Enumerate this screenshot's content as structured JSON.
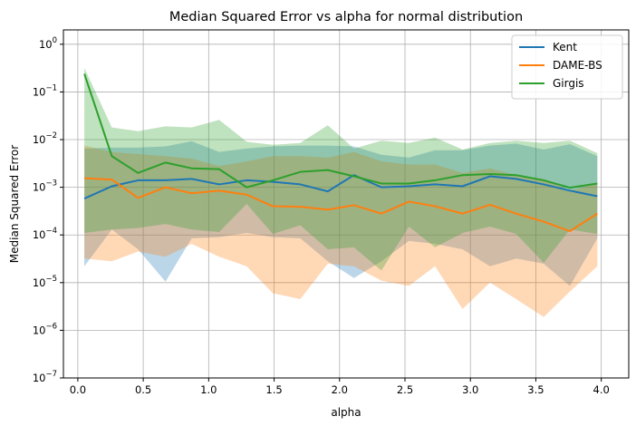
{
  "chart_data": {
    "type": "line",
    "title": "Median Squared Error vs alpha for normal distribution",
    "xlabel": "alpha",
    "ylabel": "Median Squared Error",
    "xscale": "linear",
    "yscale": "log",
    "xlim": [
      -0.11,
      4.21
    ],
    "ylim": [
      1e-07,
      2
    ],
    "xticks": [
      0.0,
      0.5,
      1.0,
      1.5,
      2.0,
      2.5,
      3.0,
      3.5,
      4.0
    ],
    "xtick_labels": [
      "0.0",
      "0.5",
      "1.0",
      "1.5",
      "2.0",
      "2.5",
      "3.0",
      "3.5",
      "4.0"
    ],
    "yticks": [
      1e-07,
      1e-06,
      1e-05,
      0.0001,
      0.001,
      0.01,
      0.1,
      1.0
    ],
    "ytick_exponents": [
      "−7",
      "−6",
      "−5",
      "−4",
      "−3",
      "−2",
      "−1",
      "0"
    ],
    "ytick_base": "10",
    "grid": true,
    "legend": "top-right",
    "x": [
      0.05,
      0.26,
      0.46,
      0.67,
      0.87,
      1.08,
      1.29,
      1.49,
      1.7,
      1.91,
      2.11,
      2.32,
      2.53,
      2.73,
      2.94,
      3.15,
      3.35,
      3.56,
      3.76,
      3.97
    ],
    "series": [
      {
        "name": "Kent",
        "color": "#1f77b4",
        "values": [
          0.00058,
          0.00105,
          0.0014,
          0.0014,
          0.0015,
          0.00115,
          0.0014,
          0.0013,
          0.00115,
          0.00082,
          0.0018,
          0.001,
          0.00105,
          0.00115,
          0.00105,
          0.0017,
          0.0015,
          0.00115,
          0.00085,
          0.00065
        ],
        "upper": [
          0.0065,
          0.0068,
          0.0068,
          0.0072,
          0.0092,
          0.0055,
          0.0065,
          0.0072,
          0.0075,
          0.0075,
          0.0072,
          0.0048,
          0.0042,
          0.006,
          0.006,
          0.0075,
          0.0082,
          0.0062,
          0.008,
          0.0045
        ],
        "lower": [
          2.2e-05,
          0.00013,
          5e-05,
          1.05e-05,
          8.5e-05,
          9e-05,
          0.00011,
          9e-05,
          8.5e-05,
          2.8e-05,
          1.25e-05,
          2.8e-05,
          7.5e-05,
          6.5e-05,
          5e-05,
          2.2e-05,
          3.2e-05,
          2.5e-05,
          8.5e-06,
          8.5e-05
        ]
      },
      {
        "name": "DAME-BS",
        "color": "#ff7f0e",
        "values": [
          0.00155,
          0.00145,
          0.0006,
          0.001,
          0.00075,
          0.00085,
          0.0007,
          0.0004,
          0.00039,
          0.00034,
          0.00042,
          0.00028,
          0.0005,
          0.0004,
          0.00028,
          0.00043,
          0.00028,
          0.00019,
          0.00012,
          0.00028
        ],
        "upper": [
          0.0075,
          0.0055,
          0.005,
          0.0045,
          0.004,
          0.0028,
          0.0035,
          0.0045,
          0.0045,
          0.0042,
          0.0055,
          0.0035,
          0.003,
          0.003,
          0.002,
          0.0025,
          0.0018,
          0.0015,
          0.00085,
          0.0012
        ],
        "lower": [
          3.2e-05,
          2.8e-05,
          4.5e-05,
          3.5e-05,
          6.5e-05,
          3.5e-05,
          2.2e-05,
          6e-06,
          4.5e-06,
          2.5e-05,
          2.2e-05,
          1.1e-05,
          8.5e-06,
          2.2e-05,
          2.8e-06,
          1e-05,
          4.5e-06,
          1.9e-06,
          6.5e-06,
          2.2e-05
        ]
      },
      {
        "name": "Girgis",
        "color": "#2ca02c",
        "values": [
          0.24,
          0.0045,
          0.002,
          0.0033,
          0.0025,
          0.0024,
          0.001,
          0.0014,
          0.0021,
          0.0023,
          0.0017,
          0.0012,
          0.0012,
          0.0014,
          0.0018,
          0.0019,
          0.0018,
          0.0014,
          0.00098,
          0.0012
        ],
        "upper": [
          0.32,
          0.018,
          0.015,
          0.019,
          0.018,
          0.026,
          0.009,
          0.0078,
          0.0085,
          0.02,
          0.0065,
          0.0095,
          0.0085,
          0.011,
          0.0062,
          0.0085,
          0.0095,
          0.0085,
          0.0095,
          0.0052
        ],
        "lower": [
          0.00011,
          0.00013,
          0.00014,
          0.00017,
          0.00013,
          0.000115,
          0.00045,
          0.000105,
          0.00016,
          5e-05,
          5.5e-05,
          1.8e-05,
          0.00015,
          5.5e-05,
          0.00011,
          0.00015,
          0.000105,
          2.6e-05,
          0.00013,
          0.000105
        ]
      }
    ]
  }
}
